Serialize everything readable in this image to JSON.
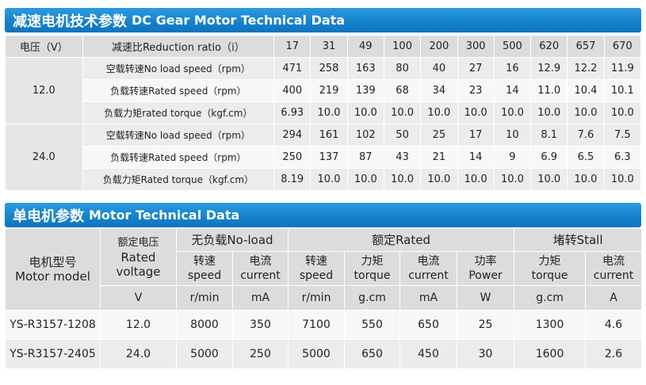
{
  "section1": {
    "title_cn": "减速电机技术参数",
    "title_en": "DC Gear Motor Technical Data",
    "header": {
      "voltage_label": "电压（V）",
      "ratio_label": "减速比Reduction ratio（i）",
      "ratios": [
        "17",
        "31",
        "49",
        "100",
        "200",
        "300",
        "500",
        "620",
        "657",
        "670"
      ]
    },
    "groups": [
      {
        "voltage": "12.0",
        "rows": [
          {
            "label": "空载转速No load speed（rpm）",
            "values": [
              "471",
              "258",
              "163",
              "80",
              "40",
              "27",
              "16",
              "12.9",
              "12.2",
              "11.9"
            ]
          },
          {
            "label": "负载转速Rated speed（rpm）",
            "values": [
              "400",
              "219",
              "139",
              "68",
              "34",
              "23",
              "14",
              "11.0",
              "10.4",
              "10.1"
            ]
          },
          {
            "label": "负载力矩rated torque（kgf.cm）",
            "values": [
              "6.93",
              "10.0",
              "10.0",
              "10.0",
              "10.0",
              "10.0",
              "10.0",
              "10.0",
              "10.0",
              "10.0"
            ]
          }
        ]
      },
      {
        "voltage": "24.0",
        "rows": [
          {
            "label": "空载转速No load speed（rpm）",
            "values": [
              "294",
              "161",
              "102",
              "50",
              "25",
              "17",
              "10",
              "8.1",
              "7.6",
              "7.5"
            ]
          },
          {
            "label": "负载转速Rated speed（rpm）",
            "values": [
              "250",
              "137",
              "87",
              "43",
              "21",
              "14",
              "9",
              "6.9",
              "6.5",
              "6.3"
            ]
          },
          {
            "label": "负载力矩Rated torque（kgf.cm）",
            "values": [
              "8.19",
              "10.0",
              "10.0",
              "10.0",
              "10.0",
              "10.0",
              "10.0",
              "10.0",
              "10.0",
              "10.0"
            ]
          }
        ]
      }
    ]
  },
  "section2": {
    "title_cn": "单电机参数",
    "title_en": "Motor Technical Data",
    "model_header_cn": "电机型号",
    "model_header_en": "Motor model",
    "voltage_header_cn": "额定电压",
    "voltage_header_en_1": "Rated",
    "voltage_header_en_2": "voltage",
    "voltage_unit": "V",
    "groups": {
      "noload": "无负载No-load",
      "rated": "额定Rated",
      "stall": "堵转Stall"
    },
    "columns": [
      {
        "cn": "转速",
        "en": "speed",
        "unit": "r/min"
      },
      {
        "cn": "电流",
        "en": "current",
        "unit": "mA"
      },
      {
        "cn": "转速",
        "en": "speed",
        "unit": "r/min"
      },
      {
        "cn": "力矩",
        "en": "torque",
        "unit": "g.cm"
      },
      {
        "cn": "电流",
        "en": "current",
        "unit": "mA"
      },
      {
        "cn": "功率",
        "en": "Power",
        "unit": "W"
      },
      {
        "cn": "力矩",
        "en": "torque",
        "unit": "g.cm"
      },
      {
        "cn": "电流",
        "en": "current",
        "unit": "A"
      }
    ],
    "rows": [
      {
        "model": "YS-R3157-1208",
        "voltage": "12.0",
        "values": [
          "8000",
          "350",
          "7100",
          "550",
          "650",
          "25",
          "1300",
          "4.6"
        ]
      },
      {
        "model": "YS-R3157-2405",
        "voltage": "24.0",
        "values": [
          "5000",
          "250",
          "5000",
          "650",
          "450",
          "30",
          "1600",
          "2.6"
        ]
      }
    ]
  }
}
